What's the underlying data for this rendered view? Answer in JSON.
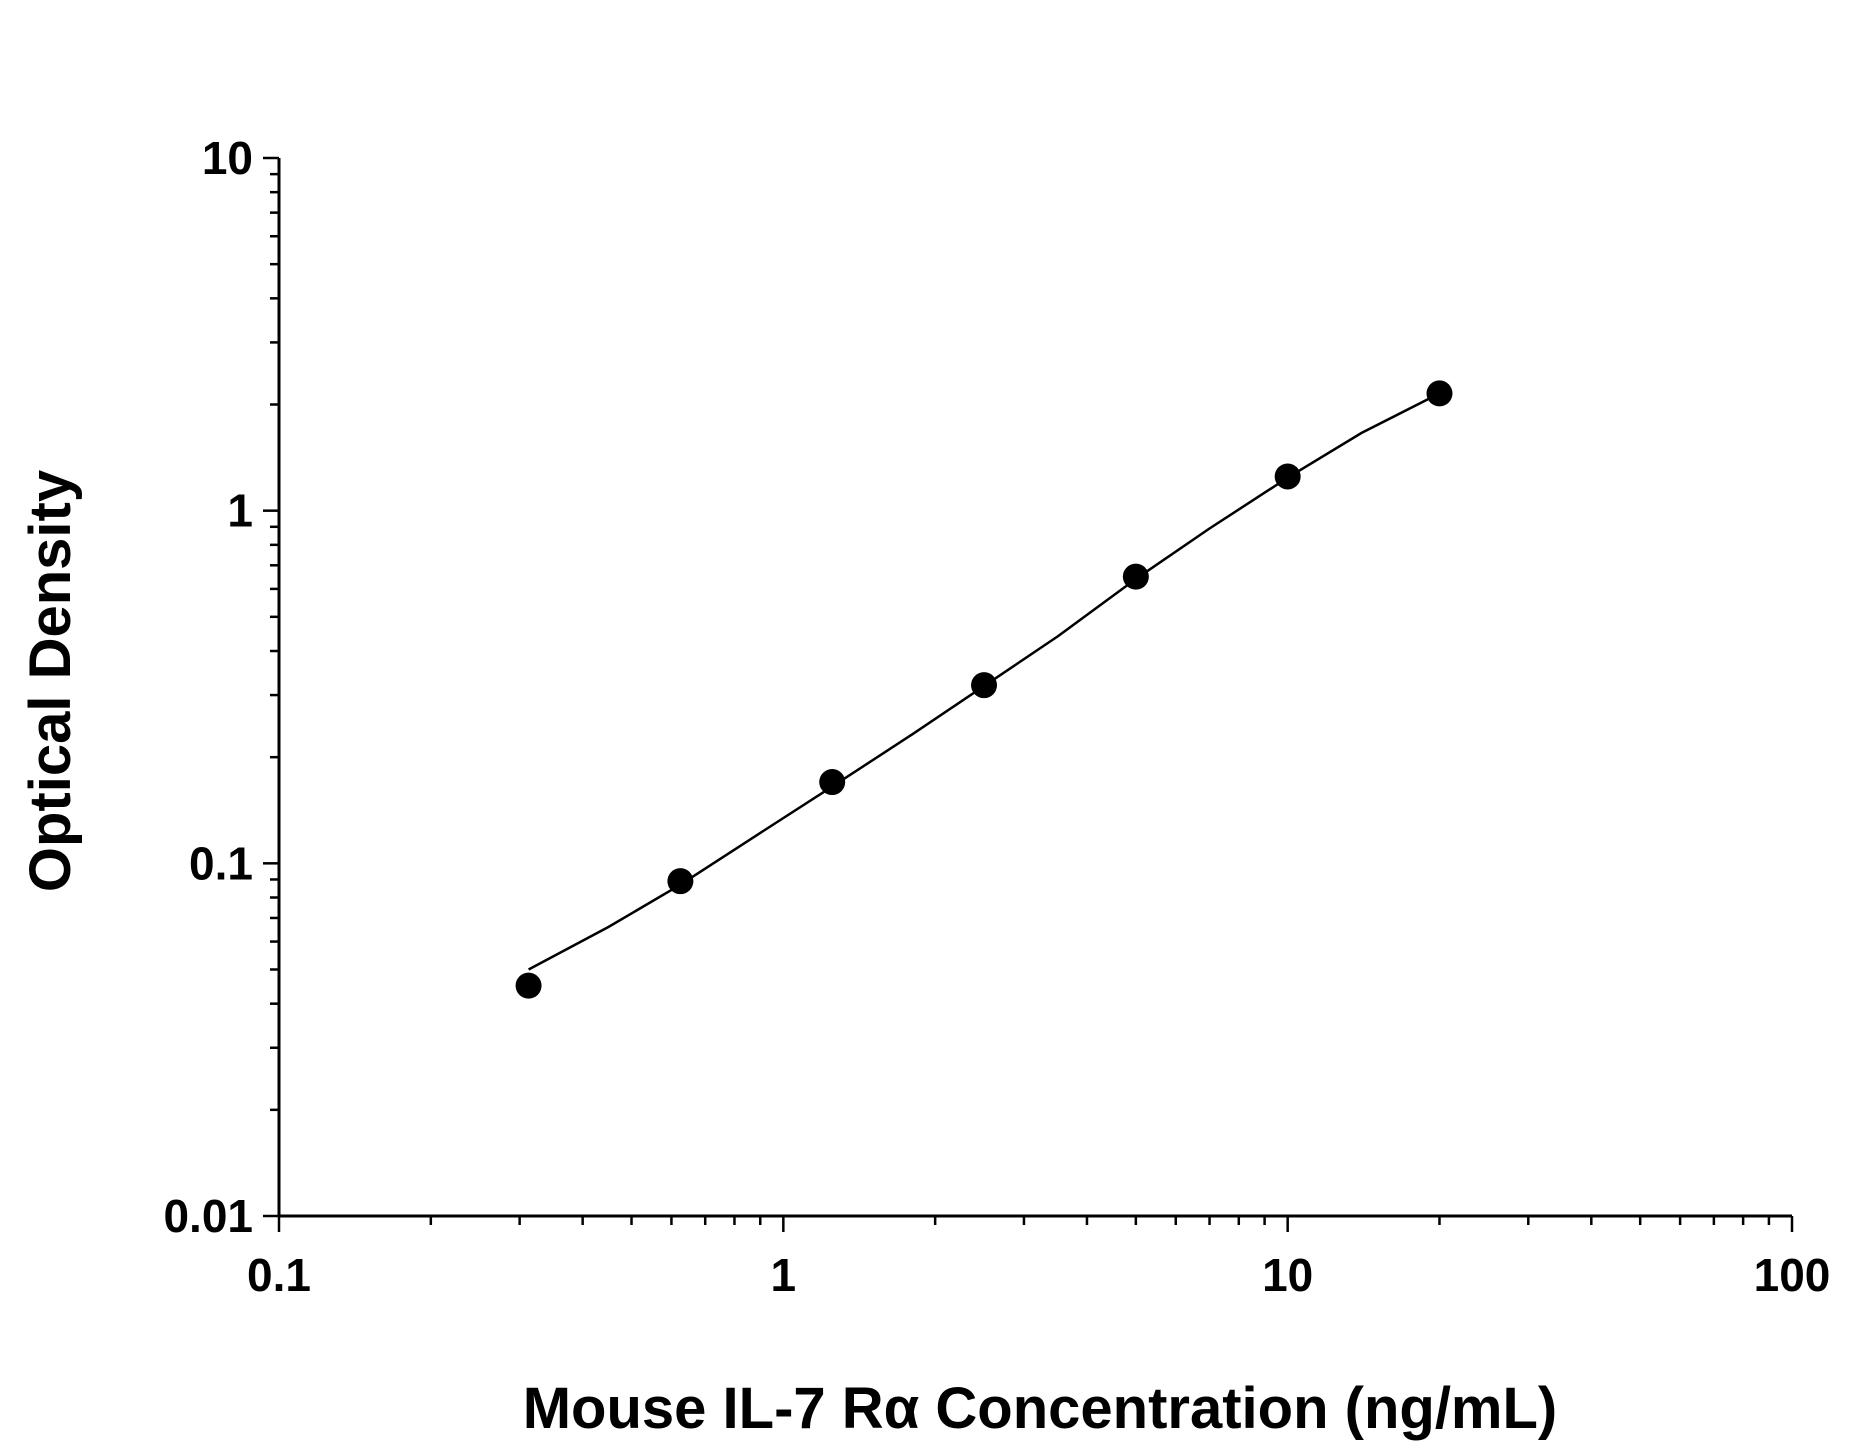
{
  "chart_data": {
    "type": "scatter",
    "xlabel": "Mouse IL-7 Rα Concentration (ng/mL)",
    "ylabel": "Optical Density",
    "x_scale": "log",
    "y_scale": "log",
    "xlim": [
      0.1,
      100
    ],
    "ylim": [
      0.01,
      10
    ],
    "x_tick_labels": [
      "0.1",
      "1",
      "10",
      "100"
    ],
    "y_tick_labels": [
      "0.01",
      "0.1",
      "1",
      "10"
    ],
    "grid": false,
    "legend": "none",
    "points": [
      {
        "x": 0.3125,
        "y": 0.045
      },
      {
        "x": 0.625,
        "y": 0.089
      },
      {
        "x": 1.25,
        "y": 0.17
      },
      {
        "x": 2.5,
        "y": 0.32
      },
      {
        "x": 5,
        "y": 0.65
      },
      {
        "x": 10,
        "y": 1.25
      },
      {
        "x": 20,
        "y": 2.15
      }
    ],
    "fit_curve": [
      {
        "x": 0.3125,
        "y": 0.05
      },
      {
        "x": 0.45,
        "y": 0.066
      },
      {
        "x": 0.625,
        "y": 0.087
      },
      {
        "x": 0.9,
        "y": 0.122
      },
      {
        "x": 1.25,
        "y": 0.165
      },
      {
        "x": 1.8,
        "y": 0.232
      },
      {
        "x": 2.5,
        "y": 0.318
      },
      {
        "x": 3.5,
        "y": 0.44
      },
      {
        "x": 5,
        "y": 0.64
      },
      {
        "x": 7,
        "y": 0.89
      },
      {
        "x": 10,
        "y": 1.24
      },
      {
        "x": 14,
        "y": 1.66
      },
      {
        "x": 20,
        "y": 2.15
      }
    ],
    "colors": {
      "marker": "#000000",
      "line": "#000000",
      "axis": "#000000"
    }
  }
}
